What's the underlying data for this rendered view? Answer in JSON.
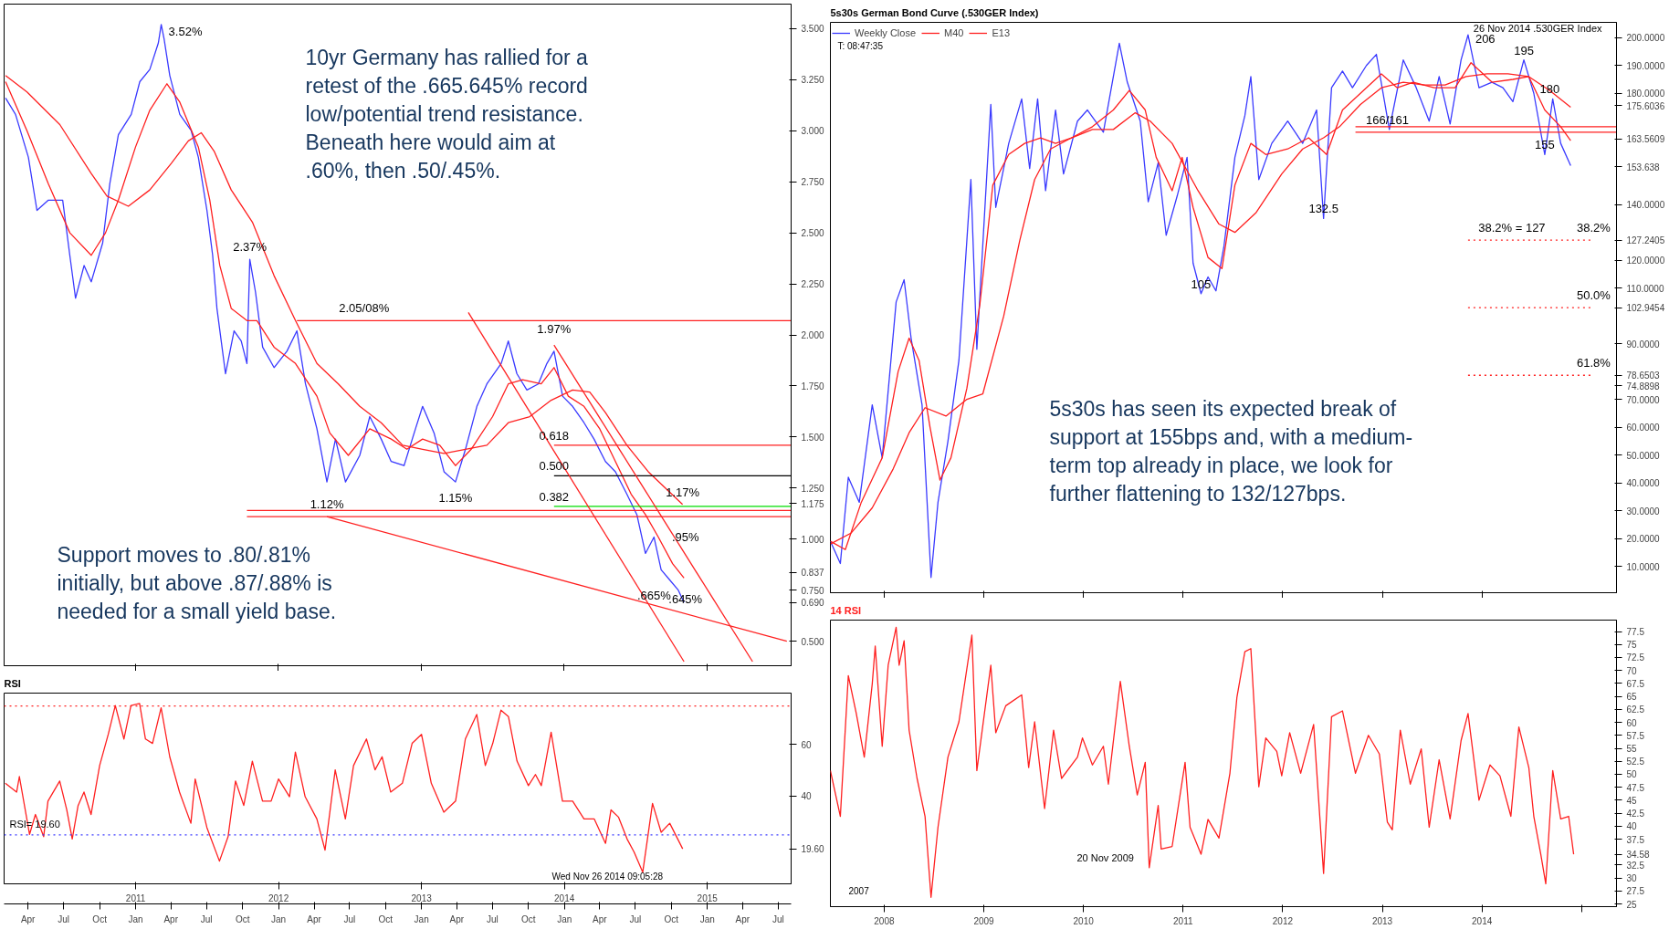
{
  "chart_data": [
    {
      "type": "line",
      "xlim": [
        2010.08,
        2015.59
      ],
      "ylim": [
        0.38,
        3.62
      ],
      "tick_labels": "y",
      "xticks": [
        2011,
        2012,
        2013,
        2014,
        2015
      ],
      "yticks": [
        {
          "value": 0.5,
          "label": "0.500"
        },
        {
          "value": 0.69,
          "label": "0.690"
        },
        {
          "value": 0.75,
          "label": "0.750"
        },
        0.837,
        {
          "value": 1.0,
          "label": "1.000"
        },
        1.175,
        {
          "value": 1.25,
          "label": "1.250"
        },
        {
          "value": 1.5,
          "label": "1.500"
        },
        {
          "value": 1.75,
          "label": "1.750"
        },
        {
          "value": 2.0,
          "label": "2.000"
        },
        {
          "value": 2.25,
          "label": "2.250"
        },
        {
          "value": 2.5,
          "label": "2.500"
        },
        {
          "value": 2.75,
          "label": "2.750"
        },
        {
          "value": 3.0,
          "label": "3.000"
        },
        {
          "value": 3.25,
          "label": "3.250"
        },
        {
          "value": 3.5,
          "label": "3.500"
        }
      ],
      "series": [
        {
          "color": "#3a3aff",
          "x": [
            2010.09,
            2010.16,
            2010.25,
            2010.31,
            2010.39,
            2010.49,
            2010.54,
            2010.58,
            2010.64,
            2010.69,
            2010.77,
            2010.82,
            2010.88,
            2010.97,
            2011.03,
            2011.1,
            2011.16,
            2011.18,
            2011.2,
            2011.24,
            2011.31,
            2011.39,
            2011.44,
            2011.5,
            2011.54,
            2011.57,
            2011.63,
            2011.69,
            2011.74,
            2011.78,
            2011.8,
            2011.84,
            2011.89,
            2011.97,
            2012.06,
            2012.13,
            2012.19,
            2012.27,
            2012.34,
            2012.4,
            2012.47,
            2012.57,
            2012.64,
            2012.72,
            2012.79,
            2012.88,
            2012.96,
            2013.01,
            2013.09,
            2013.16,
            2013.24,
            2013.31,
            2013.39,
            2013.46,
            2013.56,
            2013.61,
            2013.67,
            2013.74,
            2013.82,
            2013.88,
            2013.93,
            2013.99,
            2014.06,
            2014.14,
            2014.21,
            2014.29,
            2014.36,
            2014.44,
            2014.51,
            2014.57,
            2014.63,
            2014.68,
            2014.74,
            2014.8,
            2014.84
          ],
          "values": [
            3.16,
            3.08,
            2.87,
            2.61,
            2.66,
            2.66,
            2.39,
            2.18,
            2.34,
            2.26,
            2.45,
            2.74,
            2.98,
            3.08,
            3.24,
            3.3,
            3.43,
            3.52,
            3.45,
            3.27,
            3.08,
            3.0,
            2.87,
            2.61,
            2.39,
            2.13,
            1.81,
            2.02,
            1.97,
            1.86,
            2.37,
            2.21,
            1.94,
            1.84,
            1.92,
            2.02,
            1.76,
            1.54,
            1.28,
            1.49,
            1.28,
            1.41,
            1.6,
            1.49,
            1.38,
            1.36,
            1.54,
            1.65,
            1.52,
            1.33,
            1.28,
            1.44,
            1.65,
            1.76,
            1.86,
            1.97,
            1.81,
            1.73,
            1.76,
            1.86,
            1.92,
            1.7,
            1.65,
            1.57,
            1.49,
            1.38,
            1.33,
            1.22,
            1.12,
            0.93,
            1.01,
            0.85,
            0.8,
            0.75,
            0.69
          ]
        },
        {
          "color": "#ff2020",
          "x": [
            2010.09,
            2010.24,
            2010.39,
            2010.54,
            2010.69,
            2010.79,
            2010.88,
            2011.0,
            2011.1,
            2011.22,
            2011.31,
            2011.44,
            2011.52,
            2011.59,
            2011.67,
            2011.78,
            2011.85,
            2011.97,
            2012.12,
            2012.27,
            2012.36,
            2012.49,
            2012.64,
            2012.79,
            2012.9,
            2013.01,
            2013.13,
            2013.24,
            2013.35,
            2013.5,
            2013.61,
            2013.71,
            2013.84,
            2013.93,
            2014.03,
            2014.14,
            2014.25,
            2014.36,
            2014.47,
            2014.57,
            2014.66,
            2014.76,
            2014.84
          ],
          "values": [
            3.24,
            3.0,
            2.74,
            2.5,
            2.39,
            2.5,
            2.66,
            2.92,
            3.1,
            3.23,
            3.14,
            2.92,
            2.66,
            2.34,
            2.13,
            2.07,
            2.07,
            1.94,
            1.86,
            1.7,
            1.52,
            1.41,
            1.54,
            1.49,
            1.44,
            1.49,
            1.46,
            1.36,
            1.44,
            1.6,
            1.76,
            1.78,
            1.76,
            1.84,
            1.7,
            1.65,
            1.54,
            1.38,
            1.22,
            1.12,
            1.01,
            0.88,
            0.81
          ]
        },
        {
          "color": "#ff2020",
          "x": [
            2010.09,
            2010.24,
            2010.47,
            2010.69,
            2010.8,
            2010.95,
            2011.1,
            2011.25,
            2011.37,
            2011.46,
            2011.55,
            2011.67,
            2011.82,
            2011.97,
            2012.12,
            2012.27,
            2012.42,
            2012.57,
            2012.72,
            2012.87,
            2013.01,
            2013.16,
            2013.31,
            2013.46,
            2013.61,
            2013.76,
            2013.91,
            2014.06,
            2014.18,
            2014.29,
            2014.44,
            2014.59,
            2014.83
          ],
          "values": [
            3.27,
            3.19,
            3.03,
            2.79,
            2.68,
            2.63,
            2.71,
            2.84,
            2.95,
            2.99,
            2.9,
            2.71,
            2.55,
            2.29,
            2.07,
            1.86,
            1.76,
            1.65,
            1.57,
            1.46,
            1.44,
            1.42,
            1.44,
            1.46,
            1.57,
            1.6,
            1.68,
            1.73,
            1.72,
            1.62,
            1.46,
            1.33,
            1.17
          ]
        },
        {
          "color": "#ff2020",
          "x": [
            2012.13,
            2015.59
          ],
          "values": [
            2.07,
            2.07
          ]
        },
        {
          "color": "#ff2020",
          "x": [
            2011.78,
            2015.59
          ],
          "values": [
            1.14,
            1.14
          ]
        },
        {
          "color": "#ff2020",
          "x": [
            2011.78,
            2015.59
          ],
          "values": [
            1.11,
            1.11
          ]
        },
        {
          "color": "#ff2020",
          "x": [
            2013.93,
            2015.59
          ],
          "values": [
            1.46,
            1.46
          ]
        },
        {
          "color": "#000000",
          "x": [
            2013.93,
            2015.59
          ],
          "values": [
            1.31,
            1.31
          ]
        },
        {
          "color": "#00dd00",
          "x": [
            2013.93,
            2015.59
          ],
          "values": [
            1.16,
            1.16
          ]
        },
        {
          "color": "#ff2020",
          "x": [
            2012.34,
            2015.56
          ],
          "values": [
            1.11,
            0.5
          ]
        },
        {
          "color": "#ff2020",
          "x": [
            2013.33,
            2014.84
          ],
          "values": [
            2.11,
            0.4
          ]
        },
        {
          "color": "#ff2020",
          "x": [
            2013.93,
            2015.32
          ],
          "values": [
            1.95,
            0.4
          ]
        }
      ],
      "annotations": [
        "10yr Germany has rallied for a\nretest of the .665.645% record\nlow/potential trend resistance.\nBeneath here would aim at\n.60%, then .50/.45%.",
        "Support moves to .80/.81%\ninitially, but above .87/.88% is\nneeded for a small yield base.",
        {
          "text": "3.52%",
          "x": 2011.18,
          "y": 3.52
        },
        {
          "text": "2.37%",
          "x": 2011.8,
          "y": 2.37
        },
        {
          "text": "2.05/08%",
          "x": 2012.6,
          "y": 2.07
        },
        {
          "text": "1.97%",
          "x": 2013.93,
          "y": 1.97
        },
        {
          "text": "1.12%",
          "x": 2012.34,
          "y": 1.11
        },
        {
          "text": "1.15%",
          "x": 2013.24,
          "y": 1.14
        },
        {
          "text": "1.17%",
          "x": 2014.83,
          "y": 1.17
        },
        {
          "text": ".95%",
          "x": 2014.85,
          "y": 0.95
        },
        {
          "text": ".665%",
          "x": 2014.63,
          "y": 0.665
        },
        {
          "text": ".645%",
          "x": 2014.85,
          "y": 0.645
        },
        {
          "text": "0.618",
          "x": 2013.93,
          "y": 1.46
        },
        {
          "text": "0.500",
          "x": 2013.93,
          "y": 1.31
        },
        {
          "text": "0.382",
          "x": 2013.93,
          "y": 1.16
        }
      ]
    },
    {
      "type": "line",
      "title": "RSI",
      "xlim": [
        "2010-01-30",
        "2015-08-03"
      ],
      "ylim": [
        6,
        80
      ],
      "yticks": [
        {
          "value": 19.6,
          "label": "19.60"
        },
        40,
        60
      ],
      "x2lim": [
        "2010-01-30",
        "2015-08-03"
      ],
      "x2ticks": [
        {
          "value": "2011-01-01",
          "label": "2011"
        },
        {
          "value": "2012-01-01",
          "label": "2012"
        },
        {
          "value": "2013-01-01",
          "label": "2013"
        },
        {
          "value": "2014-01-01",
          "label": "2014"
        },
        {
          "value": "2015-01-01",
          "label": "2015"
        }
      ],
      "xticks": [
        {
          "value": "2010-04-01",
          "label": "Apr"
        },
        {
          "value": "2010-07-01",
          "label": "Jul"
        },
        {
          "value": "2010-10-01",
          "label": "Oct"
        },
        {
          "value": "2011-01-01",
          "label": "Jan"
        },
        {
          "value": "2011-04-01",
          "label": "Apr"
        },
        {
          "value": "2011-07-01",
          "label": "Jul"
        },
        {
          "value": "2011-10-01",
          "label": "Oct"
        },
        {
          "value": "2012-01-01",
          "label": "Jan"
        },
        {
          "value": "2012-04-01",
          "label": "Apr"
        },
        {
          "value": "2012-07-01",
          "label": "Jul"
        },
        {
          "value": "2012-10-01",
          "label": "Oct"
        },
        {
          "value": "2013-01-01",
          "label": "Jan"
        },
        {
          "value": "2013-04-01",
          "label": "Apr"
        },
        {
          "value": "2013-07-01",
          "label": "Jul"
        },
        {
          "value": "2013-10-01",
          "label": "Oct"
        },
        {
          "value": "2014-01-01",
          "label": "Jan"
        },
        {
          "value": "2014-04-01",
          "label": "Apr"
        },
        {
          "value": "2014-07-01",
          "label": "Jul"
        },
        {
          "value": "2014-10-01",
          "label": "Oct"
        },
        {
          "value": "2015-01-01",
          "label": "Jan"
        },
        {
          "value": "2015-04-01",
          "label": "Apr"
        },
        {
          "value": "2015-07-01",
          "label": "Jul"
        }
      ],
      "series": [
        {
          "color": "#ff2020",
          "x": [
            "2010-02-02",
            "2010-03-03",
            "2010-03-10",
            "2010-04-05",
            "2010-04-20",
            "2010-05-11",
            "2010-05-22",
            "2010-06-21",
            "2010-07-09",
            "2010-07-23",
            "2010-08-07",
            "2010-08-22",
            "2010-09-09",
            "2010-10-01",
            "2010-10-23",
            "2010-11-10",
            "2010-12-02",
            "2010-12-20",
            "2011-01-11",
            "2011-01-26",
            "2011-02-13",
            "2011-03-07",
            "2011-03-29",
            "2011-04-23",
            "2011-05-22",
            "2011-06-02",
            "2011-07-02",
            "2011-08-03",
            "2011-08-25",
            "2011-09-13",
            "2011-10-04",
            "2011-10-26",
            "2011-11-21",
            "2011-12-13",
            "2012-01-01",
            "2012-01-29",
            "2012-02-13",
            "2012-03-09",
            "2012-04-08",
            "2012-04-29",
            "2012-05-25",
            "2012-06-20",
            "2012-07-11",
            "2012-08-13",
            "2012-09-04",
            "2012-09-22",
            "2012-10-14",
            "2012-11-13",
            "2012-12-08",
            "2013-01-01",
            "2013-01-26",
            "2013-02-27",
            "2013-03-29",
            "2013-04-23",
            "2013-05-22",
            "2013-06-13",
            "2013-07-02",
            "2013-07-23",
            "2013-08-11",
            "2013-09-02",
            "2013-10-01",
            "2013-10-19",
            "2013-11-03",
            "2013-11-28",
            "2013-12-27",
            "2014-01-22",
            "2014-02-20",
            "2014-03-18",
            "2014-04-16",
            "2014-04-30",
            "2014-05-19",
            "2014-06-10",
            "2014-06-28",
            "2014-07-20",
            "2014-08-14",
            "2014-09-05",
            "2014-09-27",
            "2014-10-30"
          ],
          "values": [
            45,
            41.6,
            47.6,
            25.2,
            32.9,
            24.3,
            38.1,
            45.9,
            34.7,
            23.4,
            36.4,
            41.6,
            32.9,
            51.9,
            64,
            75.2,
            62.2,
            75.2,
            76,
            62.2,
            60.5,
            74.3,
            55.3,
            41.6,
            29.5,
            46.7,
            27.8,
            14.8,
            24.3,
            45.9,
            36.4,
            53.6,
            38.1,
            38.1,
            46.7,
            39.8,
            57.1,
            39.8,
            31.2,
            19.1,
            50.2,
            31.2,
            51.9,
            62.2,
            50.2,
            55.3,
            41.6,
            45,
            60.5,
            64,
            45,
            33.8,
            38.1,
            62.2,
            71.7,
            51.9,
            60.5,
            73.4,
            70.9,
            53.6,
            44.1,
            48.4,
            44.1,
            64.8,
            38.1,
            38.1,
            31.2,
            31.2,
            21.7,
            34.7,
            31.9,
            23.4,
            18.3,
            10.5,
            37.2,
            26,
            29.5,
            19.6
          ]
        }
      ],
      "ref_lines": [
        {
          "axis": "y",
          "value": 75,
          "color": "#ff2020",
          "line_style": "dotted"
        },
        {
          "axis": "y",
          "value": 25,
          "color": "#3a3aff",
          "line_style": "dotted"
        }
      ],
      "annotations": [
        "RSI= 19.60",
        "Wed Nov 26 2014 09:05:28"
      ]
    },
    {
      "type": "line",
      "title": "5s30s German Bond Curve (.530GER Index)",
      "xlim": [
        2007.46,
        2015.35
      ],
      "ylim": [
        0.5,
        205.5
      ],
      "tick_labels": "y",
      "legend": "top left",
      "xticks": [
        2008,
        2009,
        2010,
        2011,
        2012,
        2013,
        2014
      ],
      "yticks": [
        {
          "value": 10,
          "label": "10.0000"
        },
        {
          "value": 20,
          "label": "20.0000"
        },
        {
          "value": 30,
          "label": "30.0000"
        },
        {
          "value": 40,
          "label": "40.0000"
        },
        {
          "value": 50,
          "label": "50.0000"
        },
        {
          "value": 60,
          "label": "60.0000"
        },
        {
          "value": 70,
          "label": "70.0000"
        },
        74.8898,
        78.6503,
        {
          "value": 90,
          "label": "90.0000"
        },
        102.9454,
        {
          "value": 110,
          "label": "110.0000"
        },
        {
          "value": 120,
          "label": "120.0000"
        },
        127.2405,
        {
          "value": 140,
          "label": "140.0000"
        },
        153.638,
        163.5609,
        175.6036,
        {
          "value": 180,
          "label": "180.0000"
        },
        {
          "value": 190,
          "label": "190.0000"
        },
        {
          "value": 200,
          "label": "200.0000"
        }
      ],
      "series": [
        {
          "name": "Weekly Close",
          "color": "#3a3aff",
          "x": [
            2007.46,
            2007.56,
            2007.64,
            2007.75,
            2007.88,
            2007.98,
            2008.12,
            2008.2,
            2008.27,
            2008.38,
            2008.47,
            2008.54,
            2008.64,
            2008.75,
            2008.87,
            2008.93,
            2009.07,
            2009.12,
            2009.25,
            2009.38,
            2009.46,
            2009.54,
            2009.62,
            2009.72,
            2009.8,
            2009.94,
            2010.04,
            2010.2,
            2010.36,
            2010.44,
            2010.57,
            2010.65,
            2010.75,
            2010.83,
            2010.94,
            2011.04,
            2011.1,
            2011.18,
            2011.25,
            2011.33,
            2011.41,
            2011.52,
            2011.62,
            2011.68,
            2011.76,
            2011.89,
            2012.05,
            2012.2,
            2012.34,
            2012.41,
            2012.49,
            2012.6,
            2012.7,
            2012.84,
            2012.94,
            2013.07,
            2013.21,
            2013.34,
            2013.47,
            2013.57,
            2013.68,
            2013.79,
            2013.86,
            2013.97,
            2014.1,
            2014.21,
            2014.31,
            2014.42,
            2014.52,
            2014.63,
            2014.71,
            2014.79,
            2014.89
          ],
          "values": [
            19,
            11,
            42,
            33,
            68,
            49,
            105,
            113,
            92,
            68,
            6,
            33,
            55,
            84,
            149,
            88,
            176,
            139,
            162,
            178,
            153,
            178,
            145,
            174,
            151,
            170,
            174,
            166,
            198,
            184,
            170,
            141,
            155,
            129,
            143,
            157,
            119,
            108,
            114,
            109,
            125,
            157,
            172,
            186,
            149,
            162,
            170,
            162,
            174,
            135,
            182,
            188,
            182,
            190,
            194,
            167,
            192,
            182,
            170,
            186,
            169,
            192,
            201,
            182,
            184,
            182,
            177,
            192,
            180,
            158,
            178,
            162,
            154
          ]
        },
        {
          "name": "M40",
          "color": "#ff2020",
          "x": [
            2007.46,
            2007.67,
            2007.88,
            2008.09,
            2008.25,
            2008.41,
            2008.62,
            2008.83,
            2008.99,
            2009.2,
            2009.36,
            2009.51,
            2009.67,
            2009.88,
            2010.09,
            2010.3,
            2010.52,
            2010.67,
            2010.89,
            2011.15,
            2011.36,
            2011.52,
            2011.73,
            2011.99,
            2012.2,
            2012.41,
            2012.57,
            2012.78,
            2012.99,
            2013.21,
            2013.42,
            2013.63,
            2013.84,
            2014.05,
            2014.26,
            2014.47,
            2014.68,
            2014.89
          ],
          "values": [
            18,
            22,
            31,
            45,
            58,
            67,
            64,
            70,
            72,
            100,
            127,
            149,
            160,
            164,
            167,
            167,
            173,
            170,
            162,
            145,
            133,
            130,
            137,
            151,
            160,
            164,
            168,
            176,
            182,
            184,
            183,
            183,
            186,
            187,
            187,
            186,
            181,
            175
          ]
        },
        {
          "name": "E13",
          "color": "#ff2020",
          "x": [
            2007.46,
            2007.61,
            2007.77,
            2007.98,
            2008.14,
            2008.25,
            2008.35,
            2008.46,
            2008.56,
            2008.67,
            2008.83,
            2008.96,
            2009.09,
            2009.25,
            2009.41,
            2009.57,
            2009.72,
            2009.88,
            2010.09,
            2010.3,
            2010.46,
            2010.62,
            2010.73,
            2010.89,
            2010.99,
            2011.1,
            2011.25,
            2011.39,
            2011.52,
            2011.68,
            2011.83,
            2012.05,
            2012.26,
            2012.44,
            2012.6,
            2012.78,
            2012.99,
            2013.15,
            2013.31,
            2013.52,
            2013.73,
            2013.89,
            2014.1,
            2014.31,
            2014.47,
            2014.63,
            2014.79,
            2014.89
          ],
          "values": [
            19,
            16,
            33,
            49,
            80,
            92,
            84,
            60,
            41,
            49,
            74,
            104,
            147,
            158,
            162,
            164,
            162,
            164,
            168,
            174,
            181,
            174,
            157,
            145,
            157,
            139,
            121,
            117,
            147,
            162,
            158,
            160,
            164,
            158,
            174,
            180,
            187,
            182,
            184,
            182,
            182,
            191,
            184,
            185,
            186,
            174,
            168,
            163
          ]
        },
        {
          "color": "#ff2020",
          "x": [
            2012.73,
            2015.35
          ],
          "values": [
            168,
            168
          ]
        },
        {
          "color": "#ff2020",
          "x": [
            2012.73,
            2015.35
          ],
          "values": [
            166,
            166
          ]
        },
        {
          "color": "#ff2020",
          "line_style": "dotted",
          "x": [
            2013.86,
            2015.12
          ],
          "values": [
            127.2405,
            127.2405
          ]
        },
        {
          "color": "#ff2020",
          "line_style": "dotted",
          "x": [
            2013.86,
            2015.12
          ],
          "values": [
            102.9454,
            102.9454
          ]
        },
        {
          "color": "#ff2020",
          "line_style": "dotted",
          "x": [
            2013.86,
            2015.12
          ],
          "values": [
            78.6503,
            78.6503
          ]
        }
      ],
      "annotations": [
        "26 Nov 2014 .530GER Index",
        "T: 08:47:35",
        "5s30s has seen its expected break of\nsupport at 155bps and, with a medium-\nterm top already in place, we look for\nfurther flattening to 132/127bps.",
        {
          "text": "206",
          "x": 2013.86,
          "y": 201
        },
        {
          "text": "195",
          "x": 2014.42,
          "y": 192
        },
        {
          "text": "180",
          "x": 2014.68,
          "y": 178
        },
        {
          "text": "166/161",
          "x": 2013.05,
          "y": 166
        },
        {
          "text": "155",
          "x": 2014.63,
          "y": 158
        },
        {
          "text": "132.5",
          "x": 2012.41,
          "y": 135
        },
        {
          "text": "105",
          "x": 2011.18,
          "y": 108
        },
        {
          "text": "38.2% = 127",
          "x": 2014.3,
          "y": 127.2405
        },
        {
          "text": "38.2%",
          "x": 2015.12,
          "y": 127.2405
        },
        {
          "text": "50.0%",
          "x": 2015.12,
          "y": 102.9454
        },
        {
          "text": "61.8%",
          "x": 2015.12,
          "y": 78.6503
        }
      ]
    },
    {
      "type": "line",
      "title": "14 RSI",
      "xlim": [
        2007.46,
        2015.35
      ],
      "ylim": [
        24.5,
        79.7
      ],
      "yticks": [
        25,
        27.5,
        30,
        32.5,
        34.58,
        37.5,
        40,
        42.5,
        45,
        47.5,
        50,
        52.5,
        55,
        57.5,
        60,
        62.5,
        65,
        67.5,
        70,
        72.5,
        75,
        77.5
      ],
      "xticks": [
        2008,
        2009,
        2010,
        2011,
        2012,
        2013,
        2014,
        {
          "value": 2015,
          "label": null
        }
      ],
      "series": [
        {
          "color": "#ff2020",
          "x": [
            2007.46,
            2007.56,
            2007.64,
            2007.72,
            2007.8,
            2007.88,
            2007.91,
            2007.98,
            2008.04,
            2008.12,
            2008.15,
            2008.2,
            2008.25,
            2008.33,
            2008.41,
            2008.47,
            2008.54,
            2008.64,
            2008.75,
            2008.88,
            2008.93,
            2009.07,
            2009.12,
            2009.22,
            2009.38,
            2009.45,
            2009.51,
            2009.61,
            2009.7,
            2009.78,
            2009.94,
            2009.99,
            2010.09,
            2010.2,
            2010.25,
            2010.37,
            2010.46,
            2010.54,
            2010.62,
            2010.66,
            2010.75,
            2010.78,
            2010.89,
            2011.02,
            2011.07,
            2011.18,
            2011.25,
            2011.36,
            2011.47,
            2011.54,
            2011.62,
            2011.68,
            2011.76,
            2011.83,
            2011.94,
            2011.99,
            2012.07,
            2012.18,
            2012.31,
            2012.41,
            2012.49,
            2012.6,
            2012.73,
            2012.86,
            2012.97,
            2013.05,
            2013.1,
            2013.18,
            2013.28,
            2013.39,
            2013.47,
            2013.57,
            2013.68,
            2013.79,
            2013.86,
            2013.97,
            2014.08,
            2014.18,
            2014.29,
            2014.37,
            2014.47,
            2014.52,
            2014.59,
            2014.64,
            2014.71,
            2014.79,
            2014.87,
            2014.92
          ],
          "values": [
            50.7,
            41.9,
            69,
            61.7,
            53.3,
            67.4,
            74.7,
            55.4,
            71,
            78.3,
            71,
            75.7,
            58.5,
            49.2,
            41.9,
            26.3,
            39.8,
            53.3,
            60.1,
            76.8,
            50.7,
            71,
            58,
            63.2,
            65.3,
            51.3,
            60.1,
            43.4,
            58.5,
            49.2,
            53.3,
            57,
            51.8,
            55.4,
            48.1,
            67.9,
            55.4,
            46,
            52.3,
            32,
            44,
            35.6,
            36.1,
            52.3,
            39.8,
            34.6,
            41.3,
            37.7,
            50.2,
            64.8,
            73.6,
            74.2,
            47.6,
            57,
            54.4,
            49.7,
            58,
            50.2,
            59.6,
            30.9,
            61.1,
            62.2,
            50.2,
            57.5,
            53.9,
            40.8,
            39.3,
            58.5,
            48.1,
            54.9,
            39.8,
            52.8,
            41.4,
            56.5,
            61.7,
            45,
            51.8,
            49.7,
            41.9,
            59.1,
            51.3,
            41.9,
            34.6,
            28.9,
            50.7,
            41.4,
            41.9,
            34.58
          ]
        }
      ],
      "annotations": [
        "34.58",
        "20 Nov 2009",
        "2007"
      ]
    }
  ]
}
